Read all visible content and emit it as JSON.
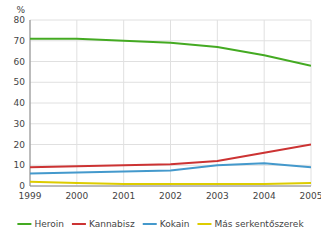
{
  "chart_data": {
    "type": "line",
    "y_label": "%",
    "x": [
      1999,
      2000,
      2001,
      2002,
      2003,
      2004,
      2005
    ],
    "xlim": [
      1999,
      2005
    ],
    "xticks": [
      1999,
      2000,
      2001,
      2002,
      2003,
      2004,
      2005
    ],
    "ylim": [
      0,
      80
    ],
    "yticks": [
      0,
      10,
      20,
      30,
      40,
      50,
      60,
      70,
      80
    ],
    "grid": true,
    "legend": "bottom",
    "series": [
      {
        "name": "Heroin",
        "color": "#44aa22",
        "values": [
          71,
          71,
          70,
          69,
          67,
          63,
          58
        ]
      },
      {
        "name": "Kannabisz",
        "color": "#cc3333",
        "values": [
          9,
          9.5,
          10,
          10.5,
          12,
          16,
          20
        ]
      },
      {
        "name": "Kokain",
        "color": "#4499cc",
        "values": [
          6,
          6.5,
          7,
          7.5,
          10,
          11,
          9
        ]
      },
      {
        "name": "Más serkentőszerek",
        "color": "#ddcc00",
        "values": [
          2,
          1.5,
          1,
          1,
          1,
          1,
          1.5
        ]
      }
    ]
  }
}
